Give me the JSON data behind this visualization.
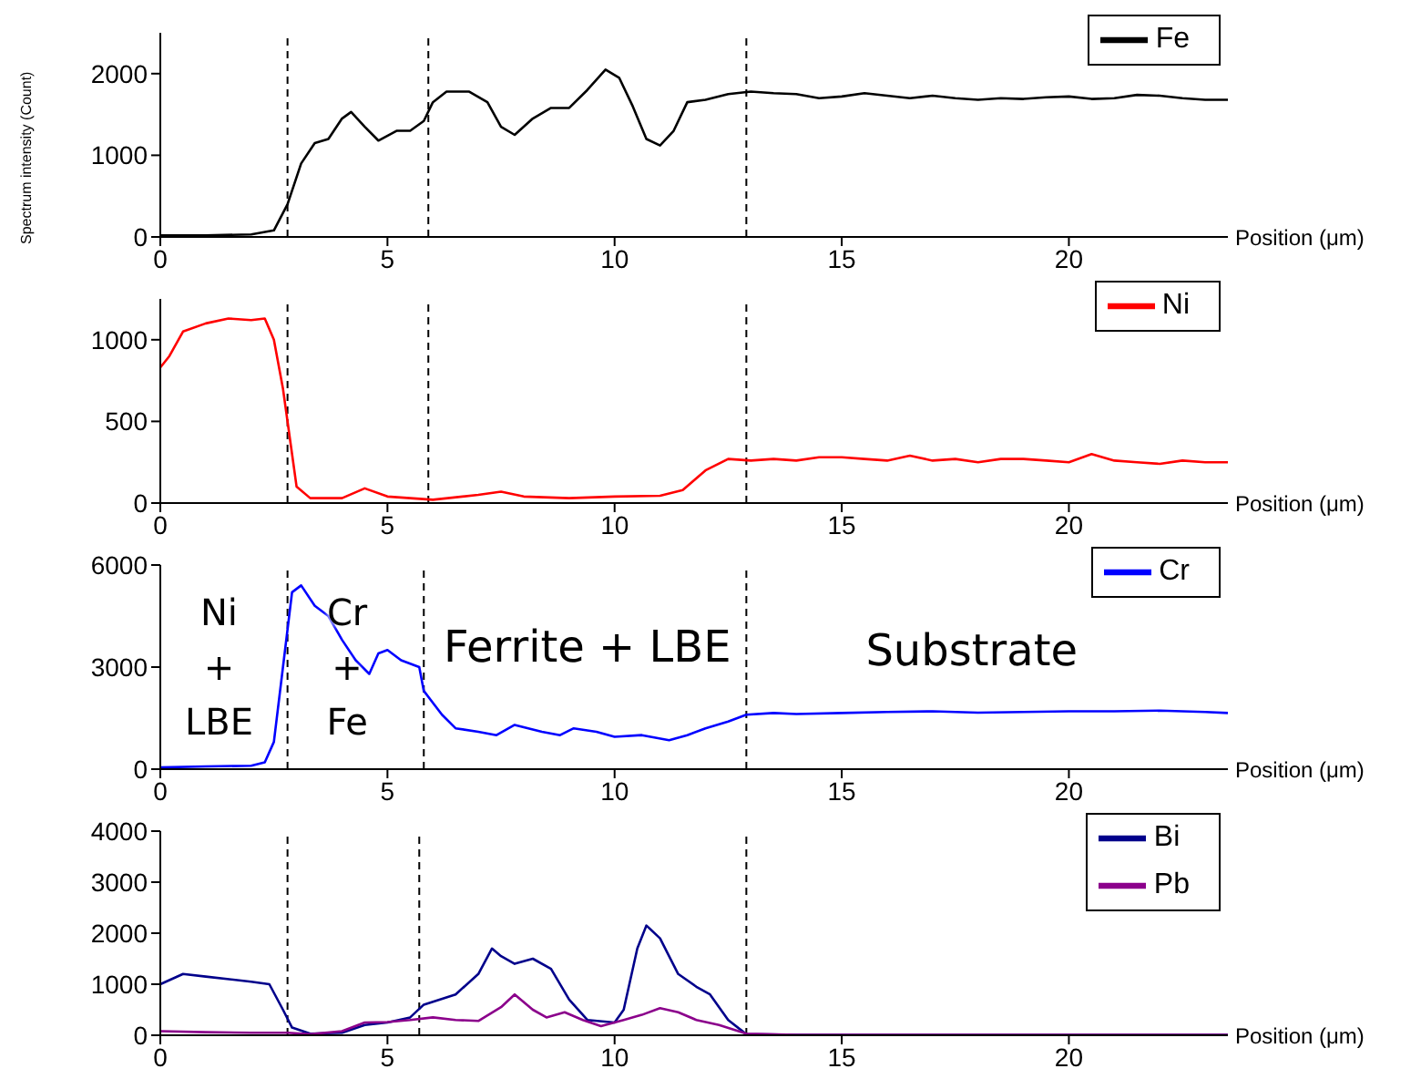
{
  "chart_data": [
    {
      "type": "line",
      "xlabel": "Position (μm)",
      "ylabel": "Spectrum intensity (Count)",
      "xlim": [
        0,
        23.5
      ],
      "xticks": [
        0,
        5,
        10,
        15,
        20
      ],
      "ylim": [
        0,
        2500
      ],
      "yticks": [
        0,
        1000,
        2000
      ],
      "legend": "top right",
      "grid": false,
      "series": [
        {
          "name": "Fe",
          "color": "#000000",
          "x": [
            0,
            1,
            2,
            2.5,
            2.8,
            3.1,
            3.4,
            3.7,
            4.0,
            4.2,
            4.5,
            4.8,
            5.2,
            5.5,
            5.8,
            6.0,
            6.3,
            6.8,
            7.2,
            7.5,
            7.8,
            8.2,
            8.6,
            9.0,
            9.4,
            9.8,
            10.1,
            10.4,
            10.7,
            11.0,
            11.3,
            11.6,
            12.0,
            12.5,
            13,
            13.5,
            14,
            14.5,
            15,
            15.5,
            16,
            16.5,
            17,
            17.5,
            18,
            18.5,
            19,
            19.5,
            20,
            20.5,
            21,
            21.5,
            22,
            22.5,
            23,
            23.5
          ],
          "values": [
            20,
            20,
            30,
            80,
            400,
            900,
            1150,
            1200,
            1450,
            1530,
            1350,
            1180,
            1300,
            1300,
            1420,
            1650,
            1780,
            1780,
            1650,
            1350,
            1250,
            1450,
            1580,
            1580,
            1800,
            2050,
            1950,
            1600,
            1200,
            1120,
            1300,
            1650,
            1680,
            1750,
            1780,
            1760,
            1750,
            1700,
            1720,
            1760,
            1730,
            1700,
            1730,
            1700,
            1680,
            1700,
            1690,
            1710,
            1720,
            1690,
            1700,
            1740,
            1730,
            1700,
            1680,
            1680
          ]
        }
      ],
      "ref_lines": [
        {
          "axis": "x",
          "value": 2.8,
          "color": "#000000",
          "line_style": "dashed"
        },
        {
          "axis": "x",
          "value": 5.9,
          "color": "#000000",
          "line_style": "dashed"
        },
        {
          "axis": "x",
          "value": 12.9,
          "color": "#000000",
          "line_style": "dashed"
        }
      ]
    },
    {
      "type": "line",
      "xlabel": "Position (μm)",
      "xlim": [
        0,
        23.5
      ],
      "xticks": [
        0,
        5,
        10,
        15,
        20
      ],
      "ylim": [
        0,
        1250
      ],
      "yticks": [
        0,
        500,
        1000
      ],
      "legend": "top right",
      "grid": false,
      "series": [
        {
          "name": "Ni",
          "color": "#ff0000",
          "x": [
            0,
            0.2,
            0.5,
            1,
            1.5,
            2.0,
            2.3,
            2.5,
            2.7,
            2.9,
            3.0,
            3.3,
            4,
            4.5,
            5,
            6,
            7,
            7.5,
            8,
            9,
            10,
            11,
            11.5,
            12,
            12.5,
            13,
            13.5,
            14,
            14.5,
            15,
            15.5,
            16,
            16.5,
            17,
            17.5,
            18,
            18.5,
            19,
            19.5,
            20,
            20.5,
            21,
            21.5,
            22,
            22.5,
            23,
            23.5
          ],
          "values": [
            830,
            900,
            1050,
            1100,
            1130,
            1120,
            1130,
            1000,
            700,
            300,
            100,
            30,
            30,
            90,
            40,
            20,
            50,
            70,
            40,
            30,
            40,
            45,
            80,
            200,
            270,
            260,
            270,
            260,
            280,
            280,
            270,
            260,
            290,
            260,
            270,
            250,
            270,
            270,
            260,
            250,
            300,
            260,
            250,
            240,
            260,
            250,
            250
          ]
        }
      ],
      "ref_lines": [
        {
          "axis": "x",
          "value": 2.8,
          "color": "#000000",
          "line_style": "dashed"
        },
        {
          "axis": "x",
          "value": 5.9,
          "color": "#000000",
          "line_style": "dashed"
        },
        {
          "axis": "x",
          "value": 12.9,
          "color": "#000000",
          "line_style": "dashed"
        }
      ]
    },
    {
      "type": "line",
      "xlabel": "Position (μm)",
      "xlim": [
        0,
        23.5
      ],
      "xticks": [
        0,
        5,
        10,
        15,
        20
      ],
      "ylim": [
        0,
        6000
      ],
      "yticks": [
        0,
        3000,
        6000
      ],
      "legend": "top right",
      "grid": false,
      "series": [
        {
          "name": "Cr",
          "color": "#0000ff",
          "x": [
            0,
            1,
            2,
            2.3,
            2.5,
            2.7,
            2.9,
            3.1,
            3.4,
            3.7,
            4.0,
            4.3,
            4.6,
            4.8,
            5.0,
            5.3,
            5.7,
            5.8,
            6.2,
            6.5,
            7,
            7.4,
            7.8,
            8.4,
            8.8,
            9.1,
            9.6,
            10,
            10.6,
            11.2,
            11.6,
            12,
            12.5,
            12.9,
            13.5,
            14,
            15,
            16,
            17,
            18,
            19,
            20,
            21,
            22,
            23,
            23.5
          ],
          "values": [
            50,
            80,
            100,
            200,
            800,
            3000,
            5200,
            5400,
            4800,
            4500,
            3800,
            3200,
            2800,
            3400,
            3500,
            3200,
            3000,
            2300,
            1600,
            1200,
            1100,
            1000,
            1300,
            1100,
            1000,
            1200,
            1100,
            950,
            1000,
            850,
            1000,
            1200,
            1400,
            1600,
            1650,
            1620,
            1650,
            1680,
            1700,
            1660,
            1680,
            1700,
            1700,
            1720,
            1680,
            1650
          ]
        }
      ],
      "ref_lines": [
        {
          "axis": "x",
          "value": 2.8,
          "color": "#000000",
          "line_style": "dashed"
        },
        {
          "axis": "x",
          "value": 5.8,
          "color": "#000000",
          "line_style": "dashed"
        },
        {
          "axis": "x",
          "value": 12.9,
          "color": "#000000",
          "line_style": "dashed"
        }
      ],
      "annotations": [
        "Ni\n+\nLBE",
        "Cr\n+\nFe",
        "Ferrite + LBE",
        "Substrate"
      ]
    },
    {
      "type": "line",
      "xlabel": "Position (μm)",
      "xlim": [
        0,
        23.5
      ],
      "xticks": [
        0,
        5,
        10,
        15,
        20
      ],
      "ylim": [
        0,
        4000
      ],
      "yticks": [
        0,
        1000,
        2000,
        3000,
        4000
      ],
      "legend": "top right",
      "grid": false,
      "series": [
        {
          "name": "Bi",
          "color": "#00008b",
          "x": [
            0,
            0.5,
            1,
            2,
            2.4,
            2.7,
            2.9,
            3.3,
            4,
            4.5,
            5,
            5.5,
            5.8,
            6.5,
            7,
            7.3,
            7.5,
            7.8,
            8.2,
            8.6,
            9,
            9.4,
            10,
            10.2,
            10.5,
            10.7,
            11,
            11.4,
            11.8,
            12.1,
            12.5,
            12.9,
            14,
            23.5
          ],
          "values": [
            1000,
            1200,
            1150,
            1050,
            1000,
            500,
            150,
            30,
            50,
            200,
            250,
            350,
            600,
            800,
            1200,
            1700,
            1550,
            1400,
            1500,
            1300,
            700,
            300,
            250,
            500,
            1700,
            2150,
            1900,
            1200,
            950,
            800,
            300,
            20,
            10,
            10
          ]
        },
        {
          "name": "Pb",
          "color": "#8b008b",
          "x": [
            0,
            1,
            2,
            2.8,
            3.3,
            4,
            4.5,
            5,
            5.5,
            6,
            6.5,
            7,
            7.5,
            7.8,
            8.2,
            8.5,
            8.9,
            9.3,
            9.7,
            10.2,
            10.6,
            11,
            11.4,
            11.8,
            12.3,
            12.9,
            14,
            23.5
          ],
          "values": [
            80,
            60,
            50,
            50,
            20,
            80,
            250,
            260,
            300,
            350,
            300,
            280,
            550,
            800,
            500,
            350,
            450,
            300,
            180,
            300,
            400,
            530,
            450,
            300,
            200,
            30,
            10,
            10
          ]
        }
      ],
      "ref_lines": [
        {
          "axis": "x",
          "value": 2.8,
          "color": "#000000",
          "line_style": "dashed"
        },
        {
          "axis": "x",
          "value": 5.7,
          "color": "#000000",
          "line_style": "dashed"
        },
        {
          "axis": "x",
          "value": 12.9,
          "color": "#000000",
          "line_style": "dashed"
        }
      ]
    }
  ]
}
